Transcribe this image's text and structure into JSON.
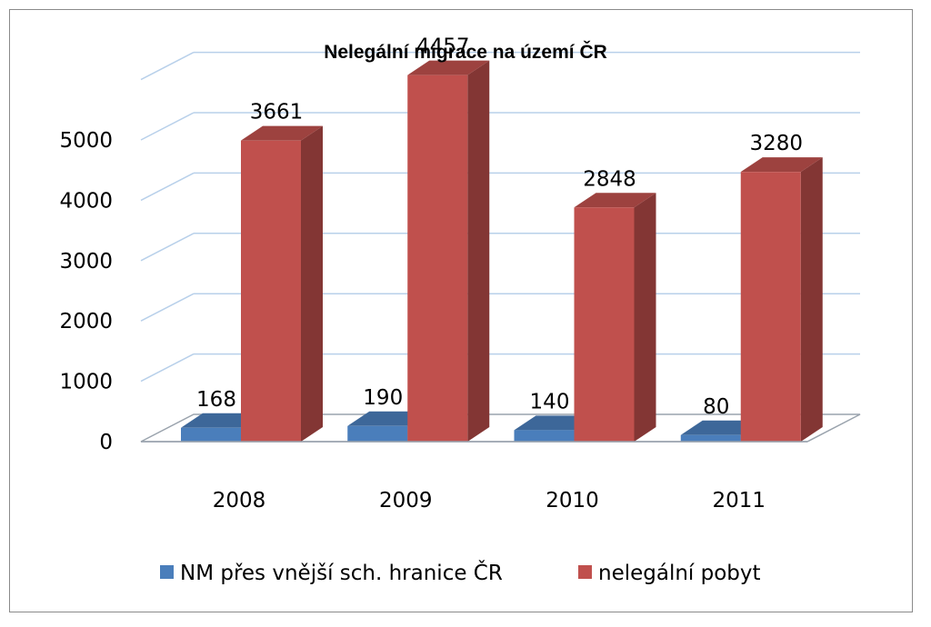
{
  "chart_data": {
    "type": "bar",
    "title": "Nelegální migrace na území ČR",
    "categories": [
      "2008",
      "2009",
      "2010",
      "2011"
    ],
    "series": [
      {
        "name": "NM přes vnější sch. hranice ČR",
        "values": [
          168,
          190,
          140,
          80
        ],
        "color": "#4a7ebb"
      },
      {
        "name": "nelegální pobyt",
        "values": [
          3661,
          4457,
          2848,
          3280
        ],
        "color": "#c0504d"
      }
    ],
    "yticks": [
      "0",
      "1000",
      "2000",
      "3000",
      "4000",
      "5000"
    ],
    "ylim": [
      0,
      5000
    ],
    "grid": true,
    "legend": "bottom",
    "xlabel": "",
    "ylabel": ""
  }
}
